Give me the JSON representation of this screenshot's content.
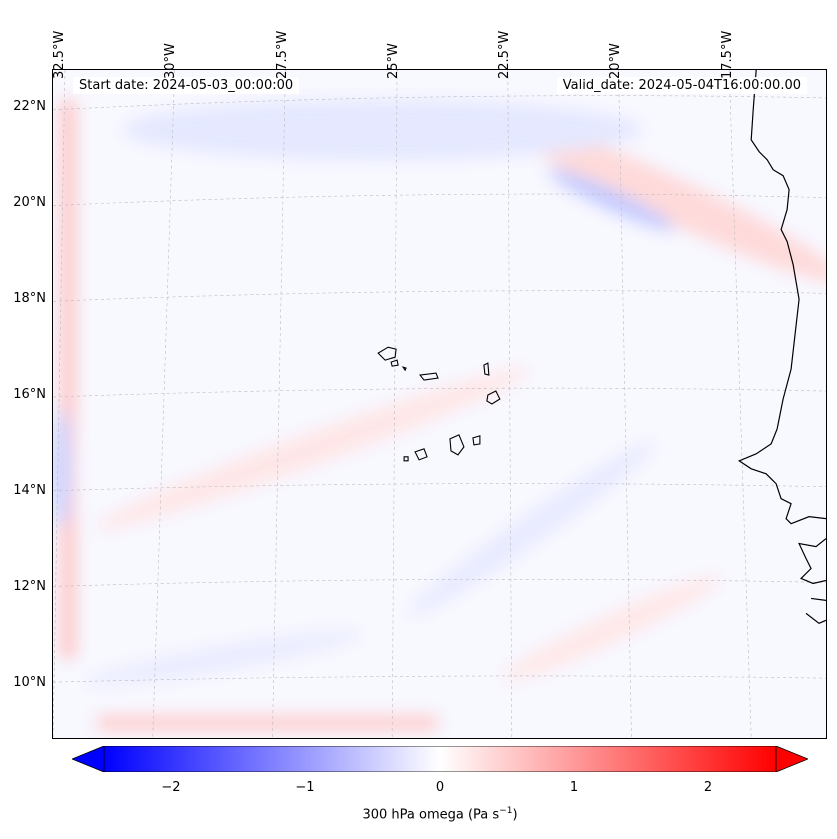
{
  "map": {
    "start_date": "Start date: 2024-05-03_00:00:00",
    "valid_date": "Valid_date: 2024-05-04T16:00:00.00",
    "lat_labels": [
      "22°N",
      "20°N",
      "18°N",
      "16°N",
      "14°N",
      "12°N",
      "10°N"
    ],
    "lon_labels": [
      "32.5°W",
      "30°W",
      "27.5°W",
      "25°W",
      "22.5°W",
      "20°W",
      "17.5°W"
    ],
    "colorbar_ticks": [
      "−2",
      "−1",
      "0",
      "1",
      "2"
    ],
    "colorbar_label_main": "300 hPa omega (Pa s",
    "colorbar_label_sup": "−1",
    "colorbar_label_end": ")",
    "colors": {
      "negative": "#0000ff",
      "positive": "#ff0000",
      "neutral": "#ffffff"
    }
  }
}
